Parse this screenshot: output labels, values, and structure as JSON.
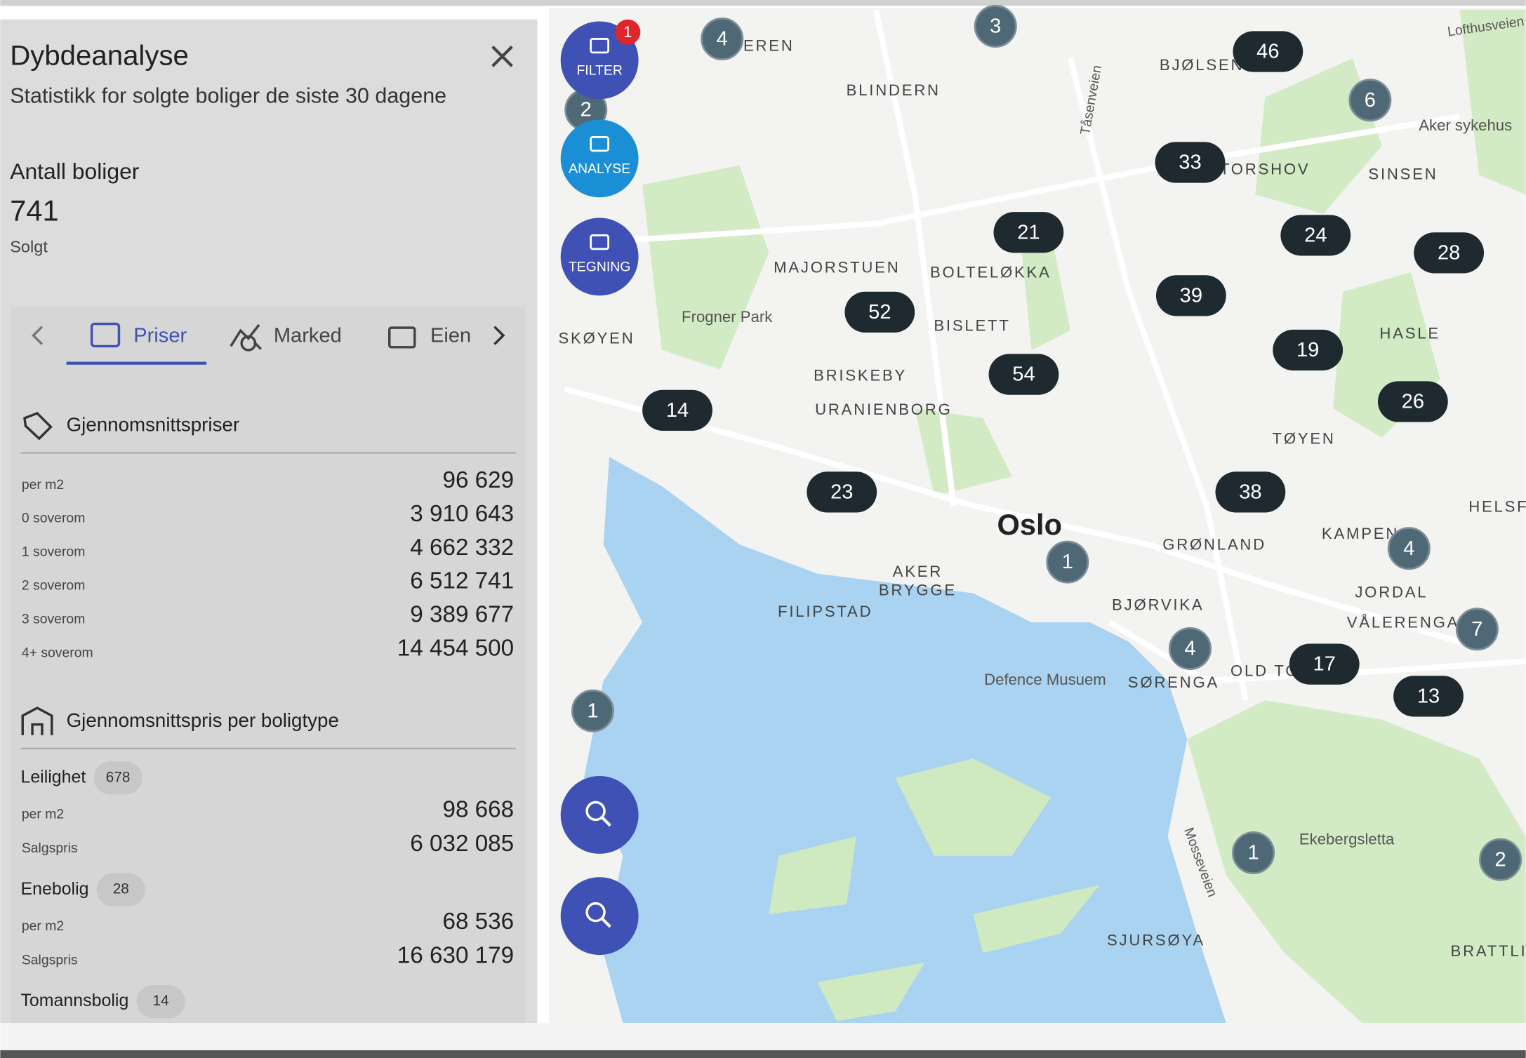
{
  "panel": {
    "title": "Dybdeanalyse",
    "subtitle": "Statistikk for solgte boliger de siste 30 dagene",
    "count_heading": "Antall boliger",
    "count": 741,
    "count_label": "Solgt",
    "tabs": [
      "Priser",
      "Marked",
      "Eien"
    ],
    "avg_prices": {
      "heading": "Gjennomsnittspriser",
      "rows": [
        {
          "label": "per m2",
          "value": "96 629"
        },
        {
          "label": "0 soverom",
          "value": "3 910 643"
        },
        {
          "label": "1 soverom",
          "value": "4 662 332"
        },
        {
          "label": "2 soverom",
          "value": "6 512 741"
        },
        {
          "label": "3 soverom",
          "value": "9 389 677"
        },
        {
          "label": "4+ soverom",
          "value": "14 454 500"
        }
      ]
    },
    "by_type": {
      "heading": "Gjennomsnittspris per boligtype",
      "types": [
        {
          "name": "Leilighet",
          "count": 678,
          "rows": [
            {
              "label": "per m2",
              "value": "98 668"
            },
            {
              "label": "Salgspris",
              "value": "6 032 085"
            }
          ]
        },
        {
          "name": "Enebolig",
          "count": 28,
          "rows": [
            {
              "label": "per m2",
              "value": "68 536"
            },
            {
              "label": "Salgspris",
              "value": "16 630 179"
            }
          ]
        },
        {
          "name": "Tomannsbolig",
          "count": 14
        }
      ]
    }
  },
  "buttons": {
    "filter": "FILTER",
    "filter_badge": 1,
    "analyse": "ANALYSE",
    "tegning": "TEGNING"
  },
  "map": {
    "city": "Oslo",
    "places": [
      "EREN",
      "BLINDERN",
      "BJØLSEN",
      "TORSHOV",
      "SINSEN",
      "Aker sykehus",
      "MAJORSTUEN",
      "BOLTELØKKA",
      "Frogner Park",
      "SKØYEN",
      "BISLETT",
      "BRISKEBY",
      "URANIENBORG",
      "HASLE",
      "TØYEN",
      "HELSF",
      "KAMPEN",
      "GRØNLAND",
      "AKER",
      "BRYGGE",
      "FILIPSTAD",
      "BJØRVIKA",
      "JORDAL",
      "VÅLERENGA",
      "OLD TO",
      "SØRENGA",
      "Defence Musuem",
      "Ekebergsletta",
      "SJURSØYA",
      "BRATTLI",
      "Tåsenveien",
      "Mosseveien",
      "Lofthusveien"
    ],
    "clusters": [
      4,
      3,
      46,
      6,
      2,
      33,
      21,
      24,
      28,
      52,
      39,
      19,
      54,
      26,
      14,
      23,
      38,
      1,
      4,
      7,
      4,
      17,
      13,
      1,
      1,
      2
    ]
  }
}
